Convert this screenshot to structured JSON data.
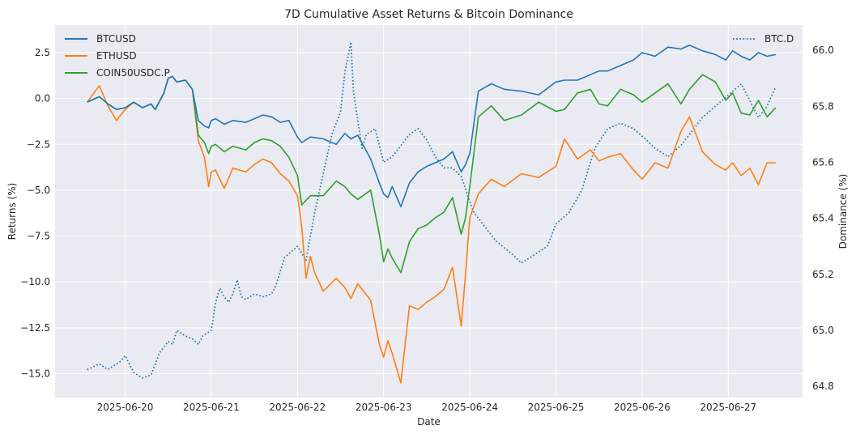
{
  "chart_data": {
    "type": "line",
    "title": "7D Cumulative Asset Returns & Bitcoin Dominance",
    "xlabel": "Date",
    "ylabel": "Returns (%)",
    "y2label": "Dominance (%)",
    "x_tick_labels": [
      "2025-06-20",
      "2025-06-21",
      "2025-06-22",
      "2025-06-23",
      "2025-06-24",
      "2025-06-25",
      "2025-06-26",
      "2025-06-27"
    ],
    "x_range": [
      "2025-06-19 08:00",
      "2025-06-28 00:00"
    ],
    "ylim": [
      -16.3,
      4.0
    ],
    "y_ticks": [
      2.5,
      0.0,
      -2.5,
      -5.0,
      -7.5,
      -10.0,
      -12.5,
      -15.0
    ],
    "y_tick_labels": [
      "2.5",
      "0.0",
      "−2.5",
      "−5.0",
      "−7.5",
      "−10.0",
      "−12.5",
      "−15.0"
    ],
    "y2lim": [
      64.76,
      66.09
    ],
    "y2_ticks": [
      66.0,
      65.8,
      65.6,
      65.4,
      65.2,
      65.0,
      64.8
    ],
    "y2_tick_labels": [
      "66.0",
      "65.8",
      "65.6",
      "65.4",
      "65.2",
      "65.0",
      "64.8"
    ],
    "grid": true,
    "style": "seaborn-darkgrid",
    "colors": {
      "background": "#eaeaf2",
      "grid": "#ffffff",
      "btc": "#1f77b4",
      "eth": "#ff7f0e",
      "coin50": "#2ca02c",
      "dominance": "#1f77b4"
    },
    "legend_left": {
      "placement": "top-left",
      "entries": [
        "BTCUSD",
        "ETHUSD",
        "COIN50USDC.P"
      ]
    },
    "legend_right": {
      "placement": "top-right",
      "entries": [
        "BTC.D"
      ]
    },
    "x_unit": "days since 2025-06-20 00:00",
    "series": [
      {
        "name": "BTCUSD",
        "axis": "left",
        "color": "#1f77b4",
        "style": "solid",
        "x": [
          -0.44,
          -0.3,
          -0.2,
          -0.1,
          0.0,
          0.1,
          0.2,
          0.3,
          0.35,
          0.45,
          0.5,
          0.55,
          0.6,
          0.7,
          0.78,
          0.85,
          0.92,
          0.97,
          1.0,
          1.05,
          1.15,
          1.25,
          1.4,
          1.5,
          1.6,
          1.7,
          1.8,
          1.9,
          2.0,
          2.05,
          2.15,
          2.3,
          2.45,
          2.55,
          2.62,
          2.7,
          2.85,
          2.95,
          3.0,
          3.05,
          3.1,
          3.2,
          3.3,
          3.4,
          3.5,
          3.6,
          3.7,
          3.8,
          3.9,
          3.95,
          4.0,
          4.1,
          4.25,
          4.4,
          4.6,
          4.8,
          5.0,
          5.1,
          5.25,
          5.4,
          5.5,
          5.6,
          5.75,
          5.9,
          6.0,
          6.15,
          6.3,
          6.45,
          6.55,
          6.7,
          6.85,
          6.97,
          7.05,
          7.15,
          7.25,
          7.35,
          7.45,
          7.55
        ],
        "y": [
          -0.2,
          0.1,
          -0.3,
          -0.6,
          -0.5,
          -0.2,
          -0.5,
          -0.3,
          -0.6,
          0.3,
          1.1,
          1.2,
          0.9,
          1.0,
          0.5,
          -1.2,
          -1.5,
          -1.6,
          -1.2,
          -1.1,
          -1.4,
          -1.2,
          -1.3,
          -1.1,
          -0.9,
          -1.0,
          -1.3,
          -1.2,
          -2.1,
          -2.4,
          -2.1,
          -2.2,
          -2.5,
          -1.9,
          -2.2,
          -2.0,
          -3.3,
          -4.6,
          -5.2,
          -5.4,
          -4.8,
          -5.9,
          -4.6,
          -4.0,
          -3.7,
          -3.5,
          -3.3,
          -2.9,
          -4.0,
          -3.6,
          -3.0,
          0.4,
          0.8,
          0.5,
          0.4,
          0.2,
          0.9,
          1.0,
          1.0,
          1.3,
          1.5,
          1.5,
          1.8,
          2.1,
          2.5,
          2.3,
          2.8,
          2.7,
          2.9,
          2.6,
          2.4,
          2.1,
          2.6,
          2.3,
          2.1,
          2.5,
          2.3,
          2.4
        ]
      },
      {
        "name": "ETHUSD",
        "axis": "left",
        "color": "#ff7f0e",
        "style": "solid",
        "x": [
          -0.44,
          -0.3,
          -0.2,
          -0.1,
          0.0,
          0.1,
          0.2,
          0.3,
          0.35,
          0.45,
          0.5,
          0.55,
          0.6,
          0.7,
          0.78,
          0.85,
          0.92,
          0.97,
          1.0,
          1.05,
          1.15,
          1.25,
          1.4,
          1.5,
          1.6,
          1.7,
          1.8,
          1.9,
          2.0,
          2.05,
          2.1,
          2.15,
          2.2,
          2.3,
          2.45,
          2.55,
          2.62,
          2.7,
          2.85,
          2.95,
          3.0,
          3.05,
          3.1,
          3.2,
          3.3,
          3.4,
          3.5,
          3.6,
          3.7,
          3.8,
          3.9,
          3.95,
          4.0,
          4.1,
          4.25,
          4.4,
          4.6,
          4.8,
          5.0,
          5.1,
          5.25,
          5.4,
          5.5,
          5.6,
          5.75,
          5.9,
          6.0,
          6.15,
          6.3,
          6.45,
          6.55,
          6.7,
          6.85,
          6.97,
          7.05,
          7.15,
          7.25,
          7.35,
          7.45,
          7.55
        ],
        "y": [
          -0.2,
          0.7,
          -0.4,
          -1.2,
          -0.6,
          -0.2,
          -0.5,
          -0.3,
          -0.6,
          0.3,
          1.1,
          1.2,
          0.9,
          1.0,
          0.5,
          -2.3,
          -3.2,
          -4.8,
          -4.0,
          -3.9,
          -4.9,
          -3.8,
          -4.0,
          -3.6,
          -3.3,
          -3.5,
          -4.1,
          -4.5,
          -5.3,
          -7.0,
          -9.8,
          -8.6,
          -9.5,
          -10.5,
          -9.8,
          -10.3,
          -10.9,
          -10.1,
          -11.0,
          -13.4,
          -14.1,
          -13.2,
          -13.9,
          -15.5,
          -11.3,
          -11.5,
          -11.1,
          -10.8,
          -10.4,
          -9.2,
          -12.4,
          -9.6,
          -6.5,
          -5.2,
          -4.4,
          -4.8,
          -4.1,
          -4.3,
          -3.7,
          -2.2,
          -3.3,
          -2.8,
          -3.4,
          -3.2,
          -3.0,
          -3.9,
          -4.4,
          -3.5,
          -3.8,
          -1.8,
          -1.0,
          -2.9,
          -3.6,
          -3.9,
          -3.5,
          -4.2,
          -3.8,
          -4.7,
          -3.5,
          -3.5
        ]
      },
      {
        "name": "COIN50USDC.P",
        "axis": "left",
        "color": "#2ca02c",
        "style": "solid",
        "x": [
          -0.44,
          -0.3,
          -0.2,
          -0.1,
          0.0,
          0.1,
          0.2,
          0.3,
          0.35,
          0.45,
          0.5,
          0.55,
          0.6,
          0.7,
          0.78,
          0.85,
          0.92,
          0.97,
          1.0,
          1.05,
          1.15,
          1.25,
          1.4,
          1.5,
          1.6,
          1.7,
          1.8,
          1.9,
          2.0,
          2.05,
          2.15,
          2.3,
          2.45,
          2.55,
          2.62,
          2.7,
          2.85,
          2.95,
          3.0,
          3.05,
          3.1,
          3.2,
          3.3,
          3.4,
          3.5,
          3.6,
          3.7,
          3.8,
          3.9,
          3.95,
          4.0,
          4.1,
          4.25,
          4.4,
          4.6,
          4.8,
          5.0,
          5.1,
          5.25,
          5.4,
          5.5,
          5.6,
          5.75,
          5.9,
          6.0,
          6.15,
          6.3,
          6.45,
          6.55,
          6.7,
          6.85,
          6.97,
          7.05,
          7.15,
          7.25,
          7.35,
          7.45,
          7.55
        ],
        "y": [
          -0.2,
          0.1,
          -0.3,
          -0.6,
          -0.5,
          -0.2,
          -0.5,
          -0.3,
          -0.6,
          0.3,
          1.1,
          1.2,
          0.9,
          1.0,
          0.5,
          -2.0,
          -2.4,
          -3.0,
          -2.6,
          -2.5,
          -2.9,
          -2.6,
          -2.8,
          -2.4,
          -2.2,
          -2.3,
          -2.6,
          -3.2,
          -4.2,
          -5.8,
          -5.3,
          -5.3,
          -4.5,
          -4.8,
          -5.2,
          -5.5,
          -5.0,
          -7.4,
          -8.9,
          -8.2,
          -8.7,
          -9.5,
          -7.8,
          -7.1,
          -6.9,
          -6.5,
          -6.2,
          -5.4,
          -7.4,
          -6.5,
          -4.8,
          -1.0,
          -0.4,
          -1.2,
          -0.9,
          -0.2,
          -0.7,
          -0.6,
          0.3,
          0.5,
          -0.3,
          -0.4,
          0.5,
          0.2,
          -0.2,
          0.3,
          0.8,
          -0.3,
          0.5,
          1.3,
          0.9,
          -0.1,
          0.3,
          -0.8,
          -0.9,
          -0.1,
          -1.0,
          -0.5
        ]
      },
      {
        "name": "BTC.D",
        "axis": "right",
        "color": "#1f77b4",
        "style": "dotted",
        "x": [
          -0.44,
          -0.3,
          -0.2,
          -0.05,
          0.0,
          0.1,
          0.2,
          0.3,
          0.4,
          0.5,
          0.55,
          0.6,
          0.7,
          0.78,
          0.85,
          0.9,
          1.0,
          1.05,
          1.1,
          1.15,
          1.2,
          1.25,
          1.3,
          1.35,
          1.4,
          1.5,
          1.6,
          1.7,
          1.75,
          1.85,
          2.0,
          2.1,
          2.2,
          2.3,
          2.4,
          2.5,
          2.55,
          2.62,
          2.65,
          2.75,
          2.8,
          2.9,
          3.0,
          3.1,
          3.2,
          3.3,
          3.4,
          3.5,
          3.6,
          3.7,
          3.8,
          3.9,
          4.0,
          4.05,
          4.15,
          4.3,
          4.5,
          4.6,
          4.7,
          4.8,
          4.9,
          5.0,
          5.15,
          5.3,
          5.45,
          5.6,
          5.75,
          5.9,
          6.05,
          6.15,
          6.3,
          6.45,
          6.55,
          6.7,
          6.85,
          7.0,
          7.15,
          7.25,
          7.35,
          7.45,
          7.55
        ],
        "y": [
          64.86,
          64.88,
          64.86,
          64.89,
          64.91,
          64.85,
          64.83,
          64.84,
          64.92,
          64.96,
          64.95,
          65.0,
          64.98,
          64.97,
          64.95,
          64.98,
          65.0,
          65.1,
          65.15,
          65.12,
          65.1,
          65.13,
          65.18,
          65.12,
          65.11,
          65.13,
          65.12,
          65.13,
          65.16,
          65.26,
          65.3,
          65.25,
          65.42,
          65.56,
          65.7,
          65.78,
          65.92,
          66.03,
          65.85,
          65.65,
          65.7,
          65.72,
          65.6,
          65.62,
          65.66,
          65.7,
          65.72,
          65.68,
          65.62,
          65.58,
          65.58,
          65.55,
          65.46,
          65.42,
          65.38,
          65.32,
          65.27,
          65.24,
          65.26,
          65.28,
          65.3,
          65.38,
          65.42,
          65.5,
          65.65,
          65.72,
          65.74,
          65.72,
          65.68,
          65.65,
          65.62,
          65.66,
          65.7,
          65.76,
          65.8,
          65.84,
          65.88,
          65.82,
          65.76,
          65.8,
          65.87
        ]
      }
    ]
  }
}
